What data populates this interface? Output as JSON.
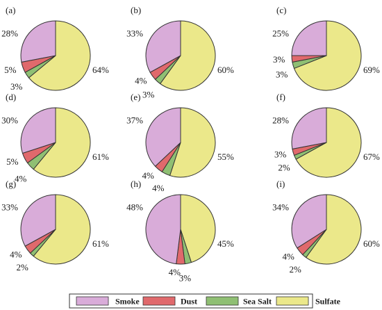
{
  "chart_data": {
    "type": "pie",
    "categories": [
      "Smoke",
      "Dust",
      "Sea Salt",
      "Sulfate"
    ],
    "colors": {
      "Smoke": "#d9acd9",
      "Dust": "#e0696c",
      "Sea Salt": "#8fbf73",
      "Sulfate": "#ebe88a"
    },
    "legend": {
      "placement": "bottom",
      "labels": [
        "Smoke",
        "Dust",
        "Sea Salt",
        "Sulfate"
      ]
    },
    "panels": [
      {
        "label": "(a)",
        "values": [
          28,
          5,
          3,
          64
        ],
        "value_labels": [
          "28%",
          "5%",
          "3%",
          "64%"
        ]
      },
      {
        "label": "(b)",
        "values": [
          33,
          4,
          3,
          60
        ],
        "value_labels": [
          "33%",
          "4%",
          "3%",
          "60%"
        ]
      },
      {
        "label": "(c)",
        "values": [
          25,
          3,
          3,
          69
        ],
        "value_labels": [
          "25%",
          "3%",
          "3%",
          "69%"
        ]
      },
      {
        "label": "(d)",
        "values": [
          30,
          5,
          4,
          61
        ],
        "value_labels": [
          "30%",
          "5%",
          "4%",
          "61%"
        ]
      },
      {
        "label": "(e)",
        "values": [
          37,
          4,
          4,
          55
        ],
        "value_labels": [
          "37%",
          "4%",
          "4%",
          "55%"
        ]
      },
      {
        "label": "(f)",
        "values": [
          28,
          3,
          2,
          67
        ],
        "value_labels": [
          "28%",
          "3%",
          "2%",
          "67%"
        ]
      },
      {
        "label": "(g)",
        "values": [
          33,
          4,
          2,
          61
        ],
        "value_labels": [
          "33%",
          "4%",
          "2%",
          "61%"
        ]
      },
      {
        "label": "(h)",
        "values": [
          48,
          4,
          3,
          45
        ],
        "value_labels": [
          "48%",
          "4%",
          "3%",
          "45%"
        ]
      },
      {
        "label": "(i)",
        "values": [
          34,
          4,
          2,
          60
        ],
        "value_labels": [
          "34%",
          "4%",
          "2%",
          "60%"
        ]
      }
    ]
  }
}
